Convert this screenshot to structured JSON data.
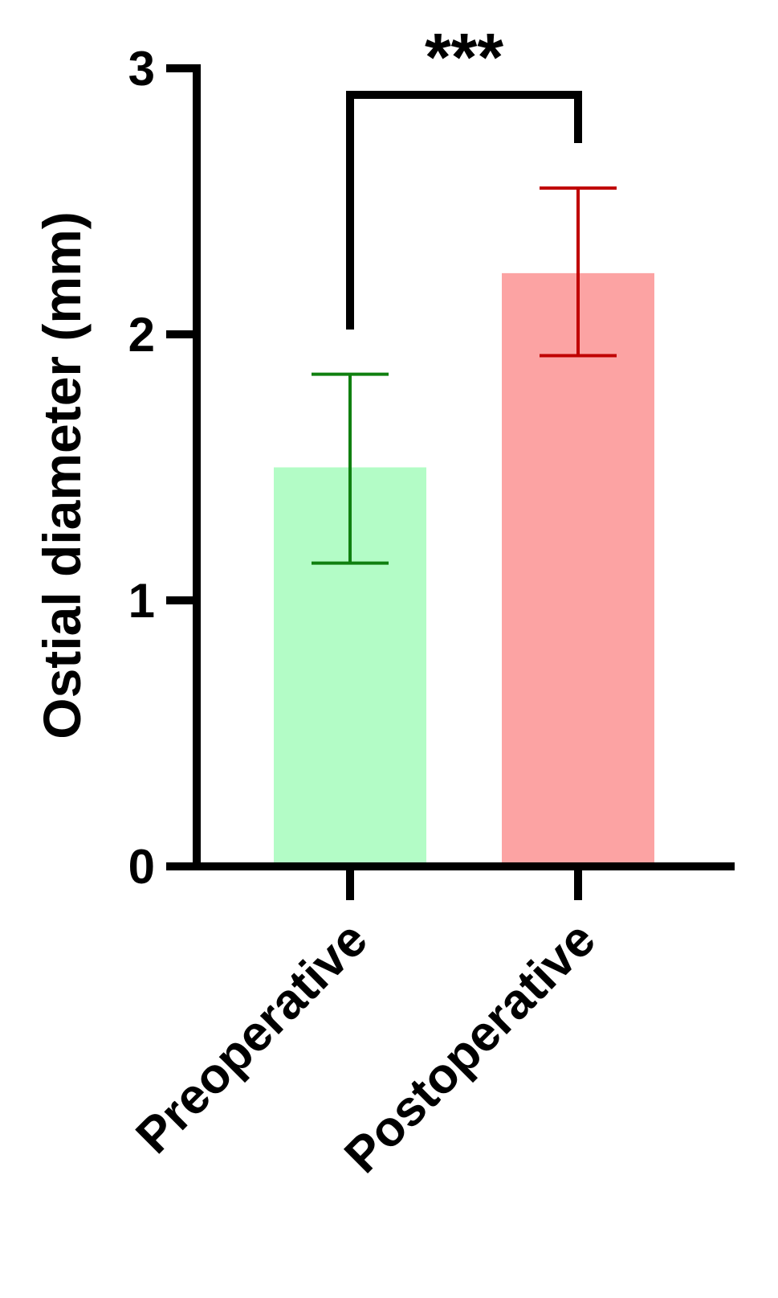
{
  "chart_data": {
    "type": "bar",
    "title": "",
    "xlabel": "",
    "ylabel": "Ostial diameter (mm)",
    "ylim": [
      0,
      3
    ],
    "yticks": [
      0,
      1,
      2,
      3
    ],
    "yticks_text": [
      "0",
      "1",
      "2",
      "3"
    ],
    "categories": [
      "Preoperative",
      "Postoperative"
    ],
    "values": [
      1.5,
      2.23
    ],
    "error_low": [
      1.14,
      1.92
    ],
    "error_high": [
      1.85,
      2.55
    ],
    "bar_colors": [
      "#b3fcc6",
      "#fca3a3"
    ],
    "error_colors": [
      "#108010",
      "#c00000"
    ],
    "significance": {
      "label": "***",
      "between": [
        0,
        1
      ]
    },
    "grid": false,
    "legend": "none"
  }
}
